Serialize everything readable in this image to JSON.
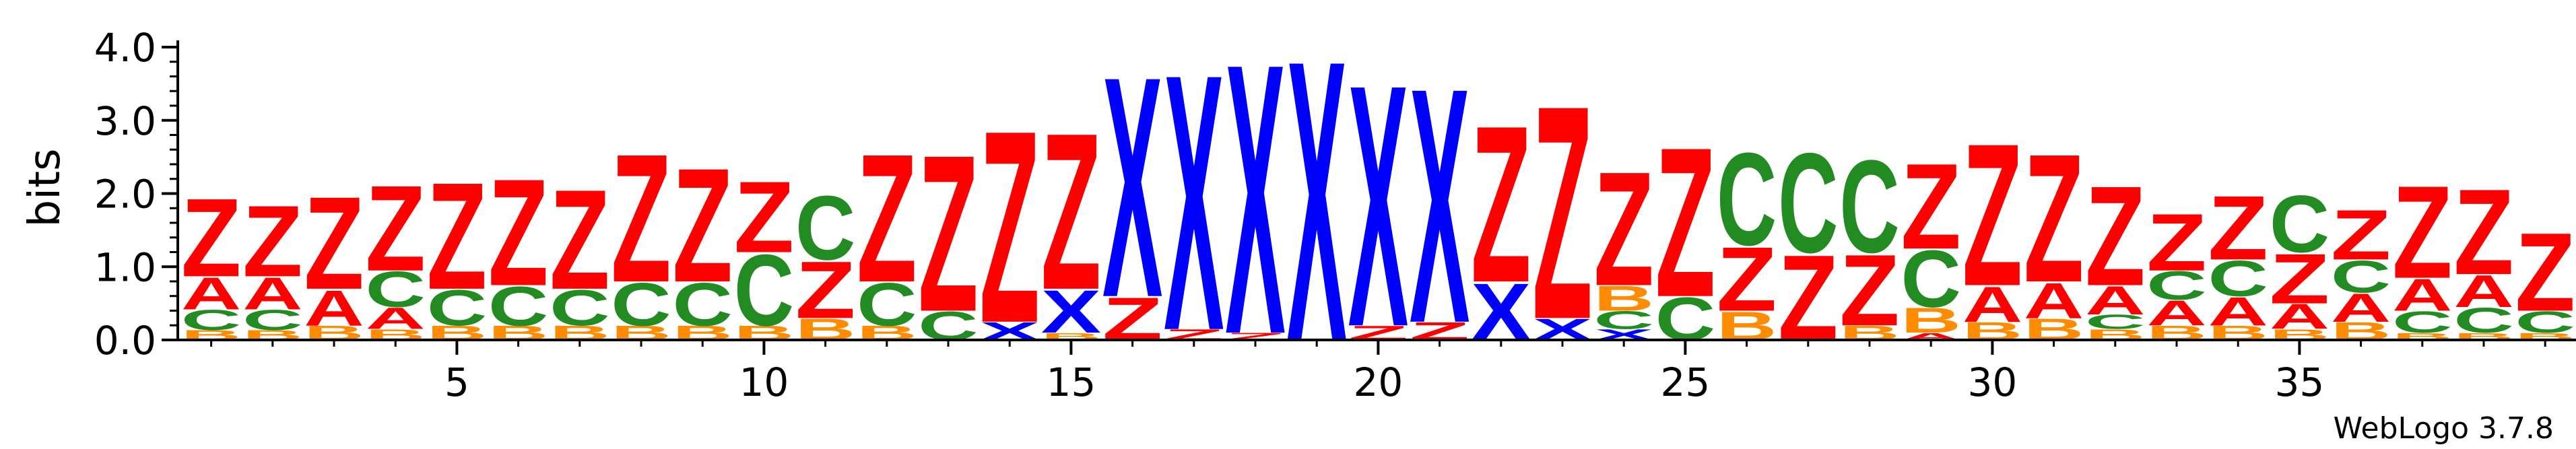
{
  "chart_data": {
    "type": "sequence-logo",
    "ylabel": "bits",
    "ylim": [
      0,
      4.0
    ],
    "y_ticks": [
      {
        "value": 0.0,
        "label": "0.0"
      },
      {
        "value": 1.0,
        "label": "1.0"
      },
      {
        "value": 2.0,
        "label": "2.0"
      },
      {
        "value": 3.0,
        "label": "3.0"
      },
      {
        "value": 4.0,
        "label": "4.0"
      }
    ],
    "x_ticks": [
      {
        "value": 5,
        "label": "5"
      },
      {
        "value": 10,
        "label": "10"
      },
      {
        "value": 15,
        "label": "15"
      },
      {
        "value": 20,
        "label": "20"
      },
      {
        "value": 25,
        "label": "25"
      },
      {
        "value": 30,
        "label": "30"
      },
      {
        "value": 35,
        "label": "35"
      }
    ],
    "position_range": [
      1,
      39
    ],
    "colors": {
      "Z": "#ff0000",
      "A": "#ff0000",
      "C": "#228b22",
      "B": "#ff8c00",
      "X": "#0000ff"
    },
    "positions": [
      {
        "pos": 1,
        "letters": [
          [
            "Z",
            1.1
          ],
          [
            "A",
            0.45
          ],
          [
            "C",
            0.28
          ],
          [
            "B",
            0.14
          ]
        ]
      },
      {
        "pos": 2,
        "letters": [
          [
            "Z",
            1.0
          ],
          [
            "A",
            0.45
          ],
          [
            "C",
            0.28
          ],
          [
            "B",
            0.14
          ]
        ]
      },
      {
        "pos": 3,
        "letters": [
          [
            "Z",
            1.3
          ],
          [
            "A",
            0.5
          ],
          [
            "B",
            0.2
          ]
        ]
      },
      {
        "pos": 4,
        "letters": [
          [
            "Z",
            1.2
          ],
          [
            "C",
            0.5
          ],
          [
            "A",
            0.3
          ],
          [
            "B",
            0.15
          ]
        ]
      },
      {
        "pos": 5,
        "letters": [
          [
            "Z",
            1.5
          ],
          [
            "C",
            0.5
          ],
          [
            "B",
            0.2
          ]
        ]
      },
      {
        "pos": 6,
        "letters": [
          [
            "Z",
            1.5
          ],
          [
            "C",
            0.55
          ],
          [
            "B",
            0.2
          ]
        ]
      },
      {
        "pos": 7,
        "letters": [
          [
            "Z",
            1.4
          ],
          [
            "C",
            0.5
          ],
          [
            "B",
            0.2
          ]
        ]
      },
      {
        "pos": 8,
        "letters": [
          [
            "Z",
            1.8
          ],
          [
            "C",
            0.6
          ],
          [
            "B",
            0.2
          ]
        ]
      },
      {
        "pos": 9,
        "letters": [
          [
            "Z",
            1.6
          ],
          [
            "C",
            0.6
          ],
          [
            "B",
            0.2
          ]
        ]
      },
      {
        "pos": 10,
        "letters": [
          [
            "Z",
            1.0
          ],
          [
            "C",
            1.0
          ],
          [
            "B",
            0.2
          ]
        ]
      },
      {
        "pos": 11,
        "letters": [
          [
            "C",
            0.9
          ],
          [
            "Z",
            0.8
          ],
          [
            "B",
            0.3
          ]
        ]
      },
      {
        "pos": 12,
        "letters": [
          [
            "Z",
            1.8
          ],
          [
            "C",
            0.6
          ],
          [
            "B",
            0.2
          ]
        ]
      },
      {
        "pos": 13,
        "letters": [
          [
            "Z",
            2.2
          ],
          [
            "C",
            0.4
          ]
        ]
      },
      {
        "pos": 14,
        "letters": [
          [
            "Z",
            2.7
          ],
          [
            "X",
            0.25
          ]
        ]
      },
      {
        "pos": 15,
        "letters": [
          [
            "Z",
            2.2
          ],
          [
            "X",
            0.6
          ],
          [
            "B",
            0.1
          ]
        ]
      },
      {
        "pos": 16,
        "letters": [
          [
            "X",
            3.1
          ],
          [
            "Z",
            0.6
          ]
        ]
      },
      {
        "pos": 17,
        "letters": [
          [
            "X",
            3.6
          ],
          [
            "Z",
            0.15
          ]
        ]
      },
      {
        "pos": 18,
        "letters": [
          [
            "X",
            3.8
          ],
          [
            "Z",
            0.1
          ]
        ]
      },
      {
        "pos": 19,
        "letters": [
          [
            "X",
            3.95
          ]
        ]
      },
      {
        "pos": 20,
        "letters": [
          [
            "X",
            3.4
          ],
          [
            "Z",
            0.2
          ]
        ]
      },
      {
        "pos": 21,
        "letters": [
          [
            "X",
            3.3
          ],
          [
            "Z",
            0.25
          ]
        ]
      },
      {
        "pos": 22,
        "letters": [
          [
            "Z",
            2.2
          ],
          [
            "X",
            0.8
          ]
        ]
      },
      {
        "pos": 23,
        "letters": [
          [
            "Z",
            3.0
          ],
          [
            "X",
            0.3
          ]
        ]
      },
      {
        "pos": 24,
        "letters": [
          [
            "Z",
            1.6
          ],
          [
            "B",
            0.35
          ],
          [
            "C",
            0.25
          ],
          [
            "X",
            0.15
          ]
        ]
      },
      {
        "pos": 25,
        "letters": [
          [
            "Z",
            2.1
          ],
          [
            "C",
            0.6
          ]
        ]
      },
      {
        "pos": 26,
        "letters": [
          [
            "C",
            1.3
          ],
          [
            "Z",
            0.9
          ],
          [
            "B",
            0.4
          ]
        ]
      },
      {
        "pos": 27,
        "letters": [
          [
            "C",
            1.4
          ],
          [
            "Z",
            1.2
          ]
        ]
      },
      {
        "pos": 28,
        "letters": [
          [
            "C",
            1.3
          ],
          [
            "Z",
            1.0
          ],
          [
            "B",
            0.2
          ]
        ]
      },
      {
        "pos": 29,
        "letters": [
          [
            "Z",
            1.2
          ],
          [
            "C",
            0.8
          ],
          [
            "B",
            0.35
          ],
          [
            "A",
            0.1
          ]
        ]
      },
      {
        "pos": 30,
        "letters": [
          [
            "Z",
            2.0
          ],
          [
            "A",
            0.5
          ],
          [
            "B",
            0.25
          ]
        ]
      },
      {
        "pos": 31,
        "letters": [
          [
            "Z",
            1.8
          ],
          [
            "A",
            0.5
          ],
          [
            "B",
            0.3
          ]
        ]
      },
      {
        "pos": 32,
        "letters": [
          [
            "Z",
            1.4
          ],
          [
            "A",
            0.4
          ],
          [
            "C",
            0.2
          ],
          [
            "B",
            0.15
          ]
        ]
      },
      {
        "pos": 33,
        "letters": [
          [
            "Z",
            0.8
          ],
          [
            "C",
            0.4
          ],
          [
            "A",
            0.35
          ],
          [
            "B",
            0.2
          ]
        ]
      },
      {
        "pos": 34,
        "letters": [
          [
            "Z",
            0.9
          ],
          [
            "C",
            0.5
          ],
          [
            "A",
            0.4
          ],
          [
            "B",
            0.2
          ]
        ]
      },
      {
        "pos": 35,
        "letters": [
          [
            "C",
            0.8
          ],
          [
            "Z",
            0.7
          ],
          [
            "A",
            0.35
          ],
          [
            "B",
            0.15
          ]
        ]
      },
      {
        "pos": 36,
        "letters": [
          [
            "Z",
            0.7
          ],
          [
            "C",
            0.45
          ],
          [
            "A",
            0.4
          ],
          [
            "B",
            0.25
          ]
        ]
      },
      {
        "pos": 37,
        "letters": [
          [
            "Z",
            1.3
          ],
          [
            "A",
            0.45
          ],
          [
            "C",
            0.3
          ],
          [
            "B",
            0.1
          ]
        ]
      },
      {
        "pos": 38,
        "letters": [
          [
            "Z",
            1.2
          ],
          [
            "A",
            0.45
          ],
          [
            "C",
            0.35
          ],
          [
            "B",
            0.1
          ]
        ]
      },
      {
        "pos": 39,
        "letters": [
          [
            "Z",
            1.1
          ],
          [
            "C",
            0.3
          ],
          [
            "B",
            0.1
          ]
        ]
      }
    ]
  },
  "footer": {
    "credit": "WebLogo 3.7.8"
  }
}
